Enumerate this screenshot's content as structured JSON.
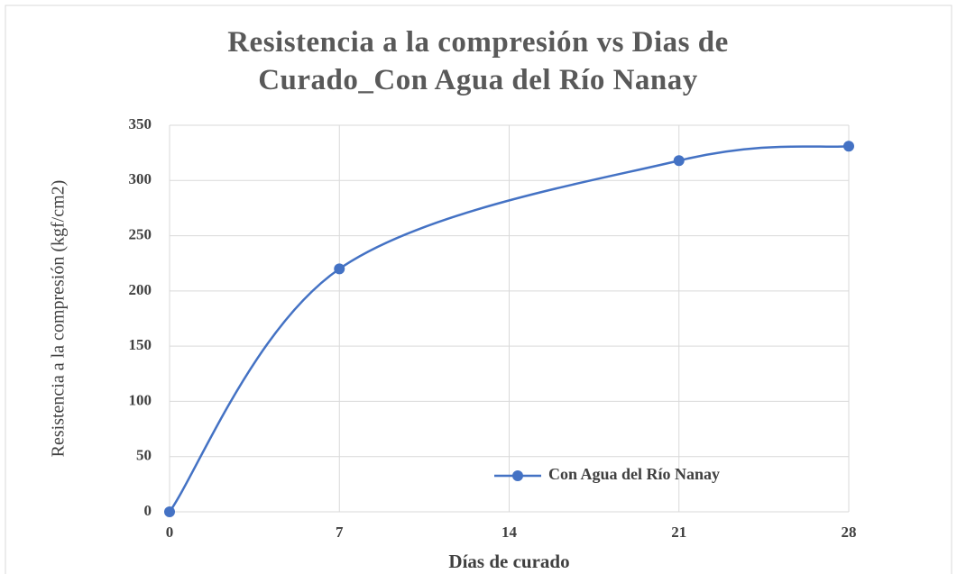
{
  "chart_data": {
    "type": "line",
    "title": "Resistencia a la compresión vs Dias de Curado_Con Agua del Río Nanay",
    "xlabel": "Días de curado",
    "ylabel": "Resistencia a la compresión (kgf/cm2)",
    "x": [
      0,
      7,
      21,
      28
    ],
    "series": [
      {
        "name": "Con Agua del Río Nanay",
        "color": "#4472c4",
        "values": [
          0,
          220,
          318,
          331
        ]
      }
    ],
    "xlim": [
      0,
      28
    ],
    "xticks": [
      0,
      7,
      14,
      21,
      28
    ],
    "ylim": [
      0,
      350
    ],
    "yticks": [
      0,
      50,
      100,
      150,
      200,
      250,
      300,
      350
    ],
    "grid": true,
    "legend": "lower right",
    "smooth": true
  }
}
